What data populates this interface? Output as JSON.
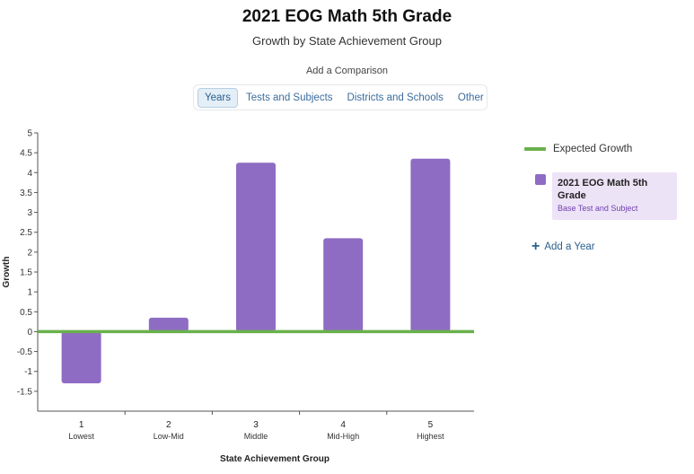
{
  "header": {
    "title": "2021 EOG Math 5th Grade",
    "subtitle": "Growth by State Achievement Group"
  },
  "comparison": {
    "label": "Add a Comparison",
    "tabs": [
      {
        "label": "Years",
        "active": true
      },
      {
        "label": "Tests and Subjects",
        "active": false
      },
      {
        "label": "Districts and Schools",
        "active": false
      },
      {
        "label": "Other",
        "active": false
      }
    ]
  },
  "legend": {
    "expected_label": "Expected Growth",
    "series_title": "2021 EOG Math 5th Grade",
    "series_subtitle": "Base Test and Subject",
    "add_year_label": "Add a Year"
  },
  "colors": {
    "bar": "#8e6cc3",
    "expected_line": "#6ab04c",
    "tab_accent": "#2a5f8f"
  },
  "chart_data": {
    "type": "bar",
    "xlabel": "State Achievement Group",
    "ylabel": "Growth",
    "ylim": [
      -2,
      5
    ],
    "yticks": [
      -1.5,
      -1,
      -0.5,
      0,
      0.5,
      1,
      1.5,
      2,
      2.5,
      3,
      3.5,
      4,
      4.5,
      5
    ],
    "categories": [
      {
        "number": "1",
        "name": "Lowest"
      },
      {
        "number": "2",
        "name": "Low-Mid"
      },
      {
        "number": "3",
        "name": "Middle"
      },
      {
        "number": "4",
        "name": "Mid-High"
      },
      {
        "number": "5",
        "name": "Highest"
      }
    ],
    "series": [
      {
        "name": "2021 EOG Math 5th Grade",
        "values": [
          -1.3,
          0.35,
          4.25,
          2.35,
          4.35
        ]
      }
    ],
    "expected_growth": 0,
    "legend_position": "right"
  }
}
